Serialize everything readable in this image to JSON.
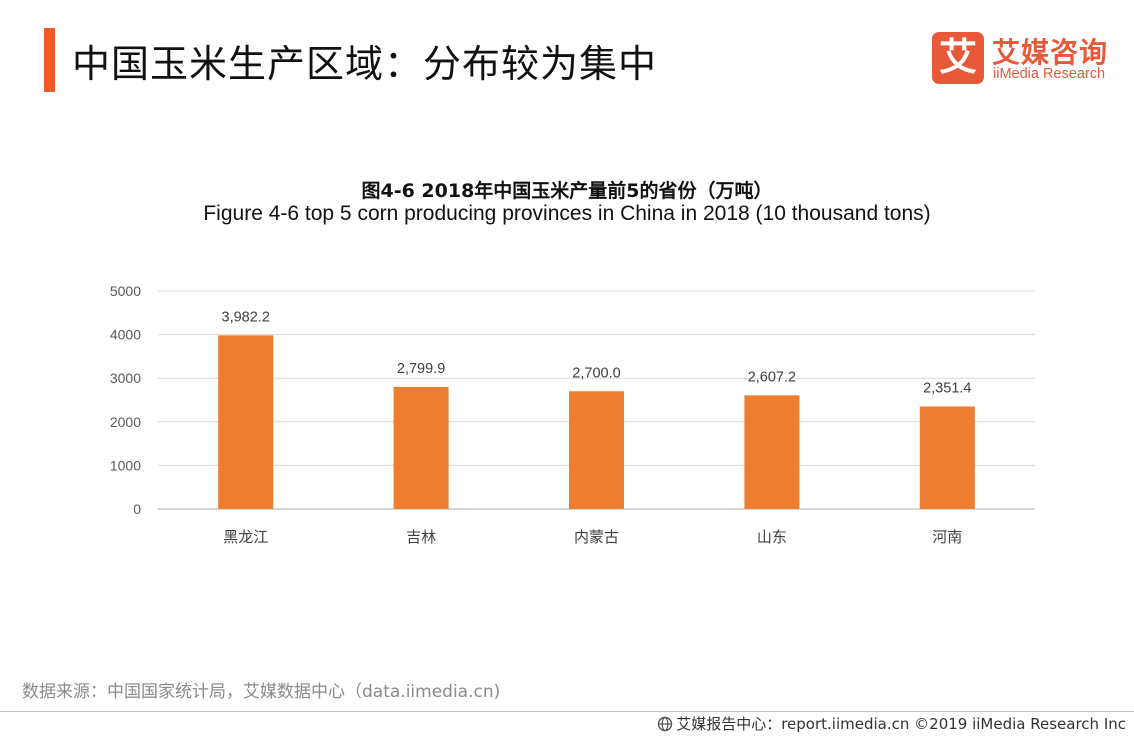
{
  "colors": {
    "accent": "#ef5a28",
    "bar": "#ed7d31",
    "logo": "#e8593a"
  },
  "header": {
    "title": "中国玉米生产区域：分布较为集中"
  },
  "logo": {
    "mark": "艾",
    "name_cn": "艾媒咨询",
    "name_en": "iiMedia Research"
  },
  "chart_data": {
    "type": "bar",
    "title": "图4-6 2018年中国玉米产量前5的省份（万吨）",
    "subtitle": "Figure 4-6 top 5 corn producing provinces in China in 2018 (10 thousand  tons)",
    "categories": [
      "黑龙江",
      "吉林",
      "内蒙古",
      "山东",
      "河南"
    ],
    "values": [
      3982.2,
      2799.9,
      2700.0,
      2607.2,
      2351.4
    ],
    "value_labels": [
      "3,982.2",
      "2,799.9",
      "2,700.0",
      "2,607.2",
      "2,351.4"
    ],
    "y_ticks": [
      "0",
      "1000",
      "2000",
      "3000",
      "4000",
      "5000"
    ],
    "ylim": [
      0,
      5000
    ],
    "grid": true
  },
  "source": "数据来源：中国国家统计局，艾媒数据中心（data.iimedia.cn)",
  "footer": {
    "text": "艾媒报告中心：report.iimedia.cn  ©2019  iiMedia Research  Inc"
  }
}
